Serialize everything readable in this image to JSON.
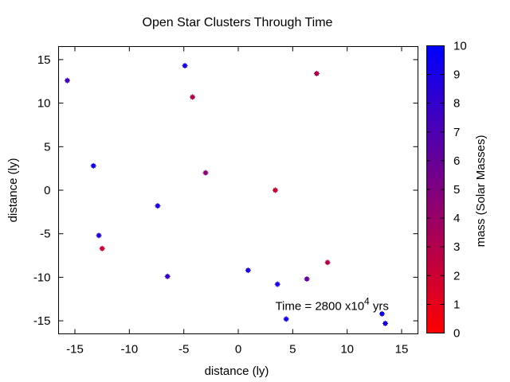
{
  "chart_data": {
    "type": "scatter",
    "title": "Open Star Clusters Through Time",
    "xlabel": "distance (ly)",
    "ylabel": "distance (ly)",
    "xlim": [
      -16.5,
      16.5
    ],
    "ylim": [
      -16.5,
      16.5
    ],
    "xticks": [
      -15,
      -10,
      -5,
      0,
      5,
      10,
      15
    ],
    "yticks": [
      -15,
      -10,
      -5,
      0,
      5,
      10,
      15
    ],
    "grid": false,
    "annotation": {
      "prefix": "Time = 2800 x10",
      "exponent": "4",
      "suffix": " yrs",
      "x": 3.4,
      "y": -13.3
    },
    "colorbar": {
      "label": "mass (Solar Masses)",
      "range": [
        0,
        10
      ],
      "ticks": [
        0,
        1,
        2,
        3,
        4,
        5,
        6,
        7,
        8,
        9,
        10
      ],
      "low_color": "#ff0000",
      "high_color": "#0000ff"
    },
    "points": [
      {
        "x": -15.7,
        "y": 12.6,
        "mass": 7.5
      },
      {
        "x": -13.3,
        "y": 2.8,
        "mass": 9.5
      },
      {
        "x": -12.8,
        "y": -5.2,
        "mass": 8.5
      },
      {
        "x": -12.5,
        "y": -6.7,
        "mass": 2.0
      },
      {
        "x": -7.4,
        "y": -1.8,
        "mass": 9.0
      },
      {
        "x": -6.5,
        "y": -9.9,
        "mass": 8.0
      },
      {
        "x": -4.9,
        "y": 14.3,
        "mass": 9.0
      },
      {
        "x": -4.2,
        "y": 10.7,
        "mass": 3.0
      },
      {
        "x": -3.0,
        "y": 2.0,
        "mass": 4.5
      },
      {
        "x": 0.9,
        "y": -9.2,
        "mass": 9.0
      },
      {
        "x": 3.4,
        "y": 0.0,
        "mass": 2.0
      },
      {
        "x": 3.6,
        "y": -10.8,
        "mass": 9.0
      },
      {
        "x": 4.4,
        "y": -14.8,
        "mass": 9.0
      },
      {
        "x": 6.3,
        "y": -10.2,
        "mass": 6.0
      },
      {
        "x": 7.2,
        "y": 13.4,
        "mass": 3.0
      },
      {
        "x": 8.2,
        "y": -8.3,
        "mass": 3.0
      },
      {
        "x": 13.2,
        "y": -14.2,
        "mass": 9.5
      },
      {
        "x": 13.5,
        "y": -15.3,
        "mass": 9.0
      }
    ]
  }
}
